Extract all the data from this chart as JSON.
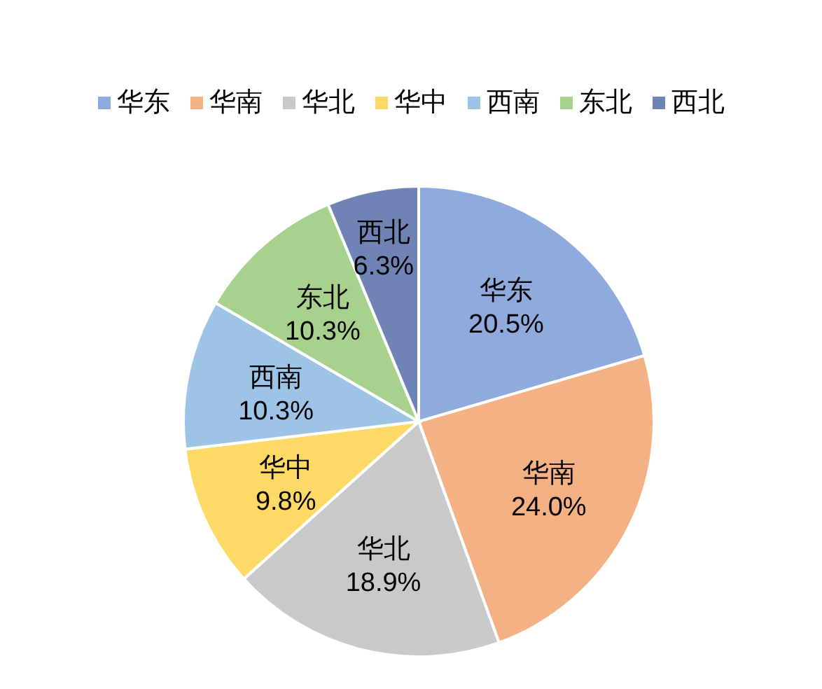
{
  "chart_data": {
    "type": "pie",
    "categories": [
      "华东",
      "华南",
      "华北",
      "华中",
      "西南",
      "东北",
      "西北"
    ],
    "values": [
      20.5,
      24.0,
      18.9,
      9.8,
      10.3,
      10.3,
      6.3
    ],
    "value_labels": [
      "20.5%",
      "24.0%",
      "18.9%",
      "9.8%",
      "10.3%",
      "10.3%",
      "6.3%"
    ],
    "colors": [
      "#8faadc",
      "#f4b183",
      "#c9c9c9",
      "#ffd966",
      "#9dc3e6",
      "#a9d18e",
      "#6f84b4"
    ],
    "legend": "top"
  }
}
